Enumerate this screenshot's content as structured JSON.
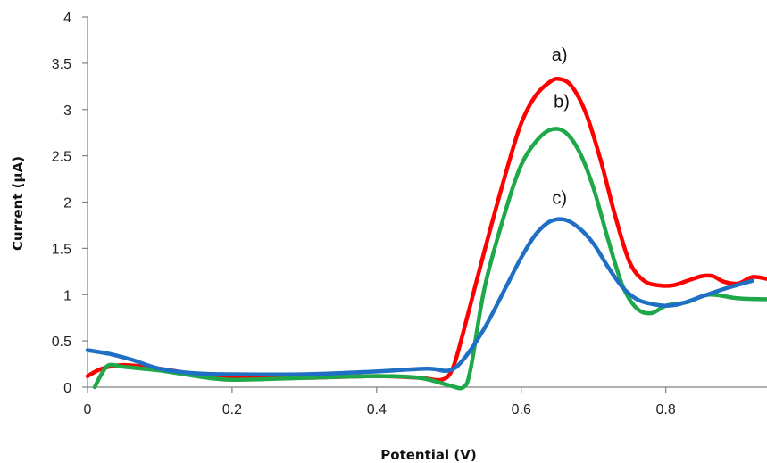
{
  "chart_data": {
    "type": "line",
    "title": "",
    "xlabel": "Potential (V)",
    "ylabel": "Current (µA)",
    "xlim": [
      0,
      0.94
    ],
    "ylim": [
      0,
      4
    ],
    "grid": false,
    "x_ticks": [
      0,
      0.2,
      0.4,
      0.6,
      0.8
    ],
    "x_tick_labels": [
      "0",
      "0.2",
      "0.4",
      "0.6",
      "0.8"
    ],
    "y_ticks": [
      0,
      0.5,
      1,
      1.5,
      2,
      2.5,
      3,
      3.5,
      4
    ],
    "y_tick_labels": [
      "0",
      "0.5",
      "1",
      "1.5",
      "2",
      "2.5",
      "3",
      "3.5",
      "4"
    ],
    "annotations": [
      {
        "text": "a)",
        "x": 0.653,
        "y": 3.53
      },
      {
        "text": "b)",
        "x": 0.656,
        "y": 3.02
      },
      {
        "text": "c)",
        "x": 0.653,
        "y": 1.98
      }
    ],
    "series": [
      {
        "color": "#FF0000",
        "x": [
          0.0,
          0.02,
          0.05,
          0.1,
          0.15,
          0.2,
          0.3,
          0.4,
          0.46,
          0.49,
          0.505,
          0.52,
          0.55,
          0.58,
          0.6,
          0.62,
          0.64,
          0.653,
          0.67,
          0.69,
          0.71,
          0.73,
          0.75,
          0.77,
          0.79,
          0.81,
          0.83,
          0.85,
          0.865,
          0.88,
          0.9,
          0.92,
          0.94
        ],
        "y": [
          0.12,
          0.2,
          0.24,
          0.2,
          0.14,
          0.1,
          0.1,
          0.12,
          0.1,
          0.08,
          0.2,
          0.6,
          1.5,
          2.35,
          2.85,
          3.15,
          3.3,
          3.33,
          3.25,
          2.95,
          2.45,
          1.85,
          1.35,
          1.15,
          1.1,
          1.1,
          1.15,
          1.2,
          1.2,
          1.14,
          1.12,
          1.19,
          1.17
        ]
      },
      {
        "color": "#1EA84A",
        "x": [
          0.01,
          0.02,
          0.03,
          0.05,
          0.1,
          0.15,
          0.2,
          0.3,
          0.4,
          0.46,
          0.5,
          0.52,
          0.53,
          0.55,
          0.58,
          0.6,
          0.62,
          0.64,
          0.66,
          0.68,
          0.7,
          0.72,
          0.74,
          0.76,
          0.78,
          0.8,
          0.83,
          0.86,
          0.9,
          0.94
        ],
        "y": [
          0.0,
          0.15,
          0.24,
          0.22,
          0.18,
          0.12,
          0.08,
          0.1,
          0.12,
          0.1,
          0.02,
          0.0,
          0.2,
          1.1,
          1.95,
          2.4,
          2.65,
          2.78,
          2.76,
          2.55,
          2.15,
          1.6,
          1.1,
          0.85,
          0.8,
          0.88,
          0.92,
          1.0,
          0.96,
          0.95
        ]
      },
      {
        "color": "#1F6FC5",
        "x": [
          0.0,
          0.03,
          0.06,
          0.1,
          0.15,
          0.2,
          0.3,
          0.4,
          0.47,
          0.5,
          0.52,
          0.55,
          0.58,
          0.6,
          0.62,
          0.64,
          0.66,
          0.68,
          0.7,
          0.72,
          0.74,
          0.76,
          0.78,
          0.8,
          0.82,
          0.85,
          0.88,
          0.92
        ],
        "y": [
          0.4,
          0.36,
          0.3,
          0.2,
          0.15,
          0.14,
          0.14,
          0.17,
          0.2,
          0.18,
          0.3,
          0.65,
          1.1,
          1.4,
          1.65,
          1.79,
          1.81,
          1.72,
          1.55,
          1.3,
          1.08,
          0.95,
          0.9,
          0.88,
          0.9,
          0.98,
          1.06,
          1.15
        ]
      }
    ]
  }
}
